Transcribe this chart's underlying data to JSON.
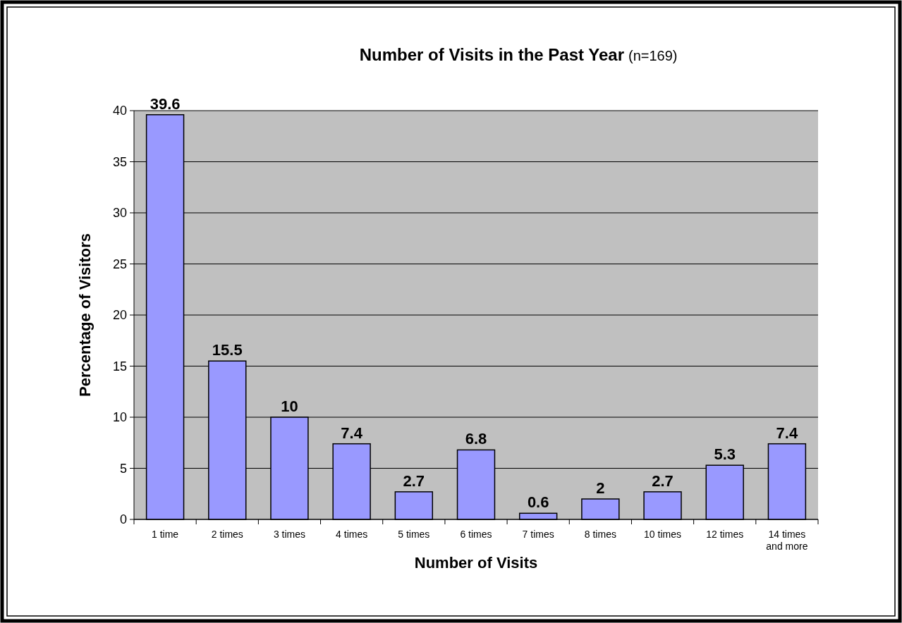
{
  "chart_data": {
    "type": "bar",
    "title": "Number of Visits in the Past Year",
    "subtitle": "(n=169)",
    "xlabel": "Number of Visits",
    "ylabel": "Percentage of Visitors",
    "categories": [
      "1 time",
      "2 times",
      "3 times",
      "4 times",
      "5 times",
      "6 times",
      "7 times",
      "8 times",
      "10 times",
      "12 times",
      "14 times and more"
    ],
    "values": [
      39.6,
      15.5,
      10,
      7.4,
      2.7,
      6.8,
      0.6,
      2,
      2.7,
      5.3,
      7.4
    ],
    "color": "#9999ff",
    "ylim": [
      0,
      40
    ],
    "yticks": [
      0,
      5,
      10,
      15,
      20,
      25,
      30,
      35,
      40
    ],
    "grid": "y",
    "data_labels": true
  }
}
